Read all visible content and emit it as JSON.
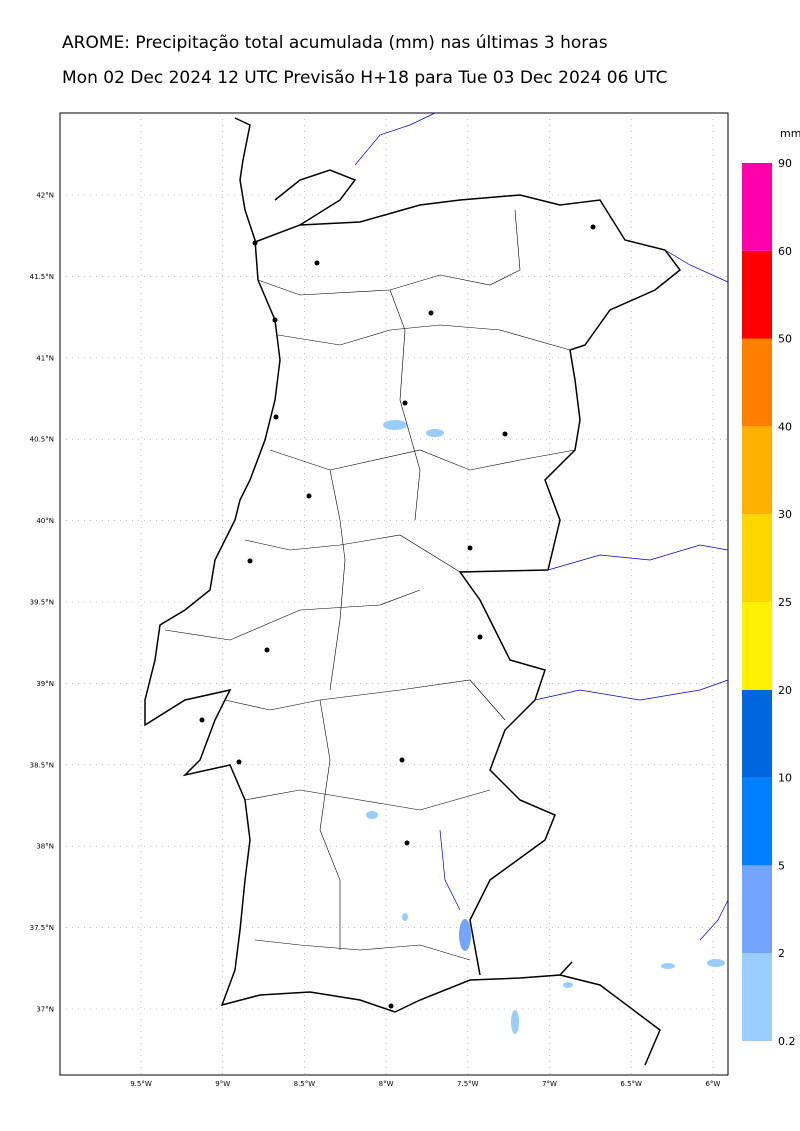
{
  "title": "AROME: Precipitação total acumulada (mm) nas últimas 3 horas",
  "subtitle": "Mon 02 Dec 2024 12 UTC Previsão H+18 para Tue 03 Dec 2024 06 UTC",
  "lat_labels": [
    "42°N",
    "41.5°N",
    "41°N",
    "40.5°N",
    "40°N",
    "39.5°N",
    "39°N",
    "38.5°N",
    "38°N",
    "37.5°N",
    "37°N"
  ],
  "lon_labels": [
    "9.5°W",
    "9°W",
    "8.5°W",
    "8°W",
    "7.5°W",
    "7°W",
    "6.5°W",
    "6°W"
  ],
  "colorbar": {
    "unit": "mm",
    "levels": [
      0.2,
      2,
      5,
      10,
      20,
      25,
      30,
      40,
      50,
      60,
      90
    ],
    "colors": [
      "#99ccff",
      "#73a5ff",
      "#0080ff",
      "#0066dd",
      "#fff200",
      "#ffd700",
      "#ffb000",
      "#ff8000",
      "#ff0000",
      "#ff00aa"
    ]
  }
}
